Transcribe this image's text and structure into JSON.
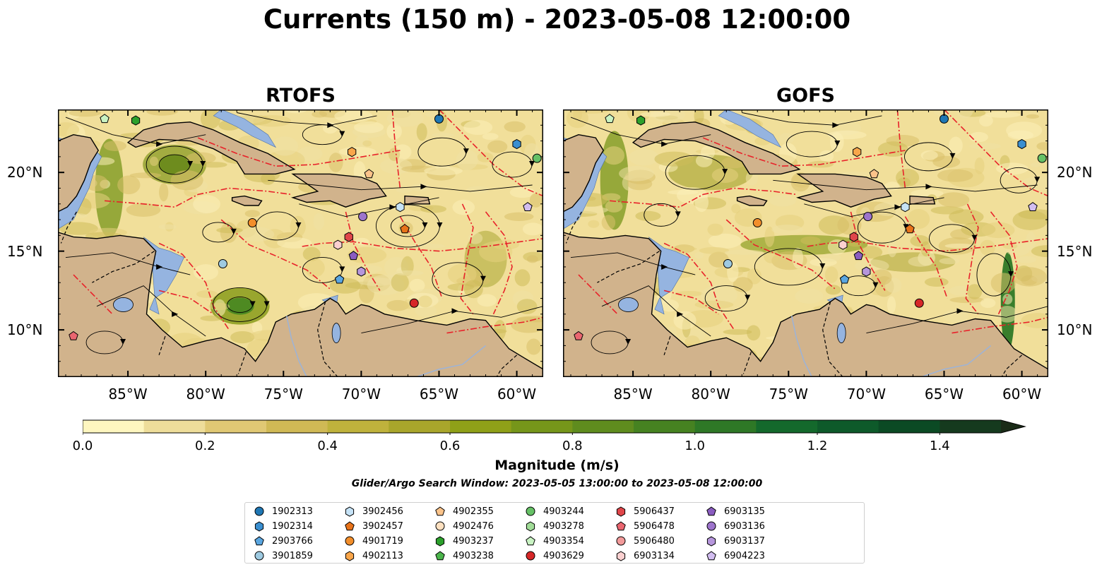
{
  "title": "Currents (150 m) - 2023-05-08 12:00:00",
  "panels": [
    {
      "title": "RTOFS"
    },
    {
      "title": "GOFS"
    }
  ],
  "map": {
    "lon_ticks": [
      "85°W",
      "80°W",
      "75°W",
      "70°W",
      "65°W",
      "60°W"
    ],
    "lat_ticks": [
      "20°N",
      "15°N",
      "10°N"
    ],
    "extent": {
      "lon_min": -89.5,
      "lon_max": -58.3,
      "lat_min": 7.0,
      "lat_max": 24.0
    },
    "colors": {
      "land": "#d1b38c",
      "water_deep": "#95b4e0",
      "boundaries": "#e8222a",
      "streamlines": "#000000"
    }
  },
  "colorbar": {
    "label": "Magnitude (m/s)",
    "ticks": [
      "0.0",
      "0.2",
      "0.4",
      "0.6",
      "0.8",
      "1.0",
      "1.2",
      "1.4"
    ],
    "min": 0.0,
    "max": 1.5,
    "extend": "max",
    "colors": [
      "#fef6bf",
      "#eedd9a",
      "#e0c874",
      "#d0b955",
      "#bfb23c",
      "#a9a62b",
      "#8fa018",
      "#76961a",
      "#5f8c1e",
      "#468221",
      "#2e7826",
      "#14692c",
      "#0e5a2a",
      "#0b4a24",
      "#153a1e",
      "#1a2b17"
    ]
  },
  "search_window": "Glider/Argo Search Window: 2023-05-05 13:00:00 to 2023-05-08 12:00:00",
  "legend": [
    {
      "label": "1902313",
      "color": "#1f77b4",
      "marker": "circle"
    },
    {
      "label": "1902314",
      "color": "#3a8fd0",
      "marker": "hexagon"
    },
    {
      "label": "2903766",
      "color": "#5aa6e0",
      "marker": "pentagon"
    },
    {
      "label": "3901859",
      "color": "#9ecae1",
      "marker": "circle"
    },
    {
      "label": "3902456",
      "color": "#c6e3f7",
      "marker": "hexagon"
    },
    {
      "label": "3902457",
      "color": "#e8731a",
      "marker": "pentagon"
    },
    {
      "label": "4901719",
      "color": "#f28e2b",
      "marker": "circle"
    },
    {
      "label": "4902113",
      "color": "#f9a64a",
      "marker": "hexagon"
    },
    {
      "label": "4902355",
      "color": "#fbc38a",
      "marker": "pentagon"
    },
    {
      "label": "4902476",
      "color": "#fde0c0",
      "marker": "circle"
    },
    {
      "label": "4903237",
      "color": "#2ca02c",
      "marker": "hexagon"
    },
    {
      "label": "4903238",
      "color": "#4bb54b",
      "marker": "pentagon"
    },
    {
      "label": "4903244",
      "color": "#66c166",
      "marker": "circle"
    },
    {
      "label": "4903278",
      "color": "#a1dc98",
      "marker": "hexagon"
    },
    {
      "label": "4903354",
      "color": "#c9f3c3",
      "marker": "pentagon"
    },
    {
      "label": "4903629",
      "color": "#d62728",
      "marker": "circle"
    },
    {
      "label": "5906437",
      "color": "#e0464a",
      "marker": "hexagon"
    },
    {
      "label": "5906478",
      "color": "#ea6670",
      "marker": "pentagon"
    },
    {
      "label": "5906480",
      "color": "#f29a9a",
      "marker": "circle"
    },
    {
      "label": "6903134",
      "color": "#fbd0d0",
      "marker": "hexagon"
    },
    {
      "label": "6903135",
      "color": "#8a5cc0",
      "marker": "pentagon"
    },
    {
      "label": "6903136",
      "color": "#9d74cc",
      "marker": "circle"
    },
    {
      "label": "6903137",
      "color": "#b696dc",
      "marker": "hexagon"
    },
    {
      "label": "6904223",
      "color": "#d2bdf0",
      "marker": "pentagon"
    }
  ],
  "markers": [
    {
      "id": "1902313",
      "lon": -65.0,
      "lat": 23.4
    },
    {
      "id": "1902314",
      "lon": -60.0,
      "lat": 21.8
    },
    {
      "id": "4903244",
      "lon": -58.7,
      "lat": 20.9
    },
    {
      "id": "4903237",
      "lon": -84.5,
      "lat": 23.3
    },
    {
      "id": "4903354",
      "lon": -86.5,
      "lat": 23.4
    },
    {
      "id": "4902113",
      "lon": -70.6,
      "lat": 21.3
    },
    {
      "id": "4902355",
      "lon": -69.5,
      "lat": 19.9
    },
    {
      "id": "4901719",
      "lon": -77.0,
      "lat": 16.8
    },
    {
      "id": "3902456",
      "lon": -67.5,
      "lat": 17.8
    },
    {
      "id": "6904223",
      "lon": -59.3,
      "lat": 17.8
    },
    {
      "id": "6903136",
      "lon": -69.9,
      "lat": 17.2
    },
    {
      "id": "3902457",
      "lon": -67.2,
      "lat": 16.4
    },
    {
      "id": "5906437",
      "lon": -70.8,
      "lat": 15.9
    },
    {
      "id": "6903134",
      "lon": -71.5,
      "lat": 15.4
    },
    {
      "id": "6903135",
      "lon": -70.5,
      "lat": 14.7
    },
    {
      "id": "6903137",
      "lon": -70.0,
      "lat": 13.7
    },
    {
      "id": "3901859",
      "lon": -78.9,
      "lat": 14.2
    },
    {
      "id": "2903766",
      "lon": -71.4,
      "lat": 13.2
    },
    {
      "id": "4903629",
      "lon": -66.6,
      "lat": 11.7
    },
    {
      "id": "5906478",
      "lon": -88.5,
      "lat": 9.6
    }
  ]
}
